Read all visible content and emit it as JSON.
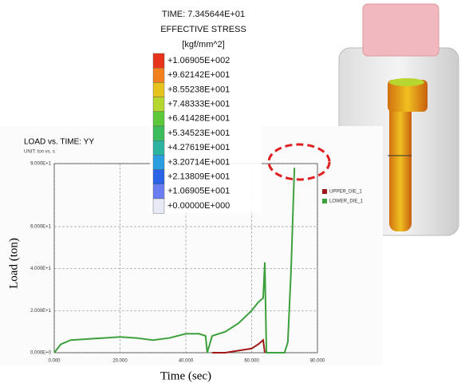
{
  "contour_legend": {
    "time": "TIME: 7.345644E+01",
    "quantity": "EFFECTIVE STRESS",
    "unit": "[kgf/mm^2]",
    "labels": [
      "+1.06905E+002",
      "+9.62142E+001",
      "+8.55238E+001",
      "+7.48333E+001",
      "+6.41428E+001",
      "+5.34523E+001",
      "+4.27619E+001",
      "+3.20714E+001",
      "+2.13809E+001",
      "+1.06905E+001",
      "+0.00000E+000"
    ],
    "colors": [
      "#e8341c",
      "#f3801e",
      "#e6c21c",
      "#b6d630",
      "#5cc83a",
      "#3cbc5c",
      "#2cb4a0",
      "#2a9ee0",
      "#2a62e8",
      "#6a7ef0",
      "#e8eaf6"
    ]
  },
  "chart_data": {
    "type": "line",
    "title": "LOAD vs. TIME: YY",
    "subtitle": "UNIT: ton vs. s",
    "x_label": "Time (sec)",
    "y_label": "Load (ton)",
    "x": [
      0,
      2,
      5,
      10,
      15,
      20,
      25,
      30,
      35,
      40,
      44,
      46,
      46.5,
      48,
      52,
      56,
      60,
      62,
      63.5,
      64,
      64.5,
      66,
      70,
      71,
      72,
      73
    ],
    "series": [
      {
        "name": "UPPER_DIE_1",
        "color": "#a01818",
        "values": [
          null,
          null,
          null,
          null,
          null,
          null,
          null,
          null,
          null,
          null,
          null,
          null,
          null,
          0,
          0,
          1,
          2,
          4,
          6,
          0,
          null,
          null,
          null,
          null,
          null,
          null
        ]
      },
      {
        "name": "LOWER_DIE_1",
        "color": "#3ca03c",
        "values": [
          0,
          4,
          6,
          6.5,
          7,
          7.5,
          7,
          6,
          7,
          9,
          9,
          8,
          0,
          8,
          10,
          14,
          20,
          24,
          26,
          43,
          0,
          0,
          0,
          5,
          40,
          88
        ]
      }
    ],
    "xlim": [
      0,
      80
    ],
    "xticks": [
      {
        "value": 0,
        "label": "0.000"
      },
      {
        "value": 20,
        "label": "20.000"
      },
      {
        "value": 40,
        "label": "40.000"
      },
      {
        "value": 60,
        "label": "60.000"
      },
      {
        "value": 80,
        "label": "80.000"
      }
    ],
    "ylim": [
      0,
      90
    ],
    "yticks": [
      {
        "value": 0,
        "label": "0.000E+0"
      },
      {
        "value": 20,
        "label": "2.000E+1"
      },
      {
        "value": 40,
        "label": "4.000E+1"
      },
      {
        "value": 60,
        "label": "6.000E+1"
      },
      {
        "value": 90,
        "label": "9.000E+1"
      }
    ],
    "grid": true
  }
}
